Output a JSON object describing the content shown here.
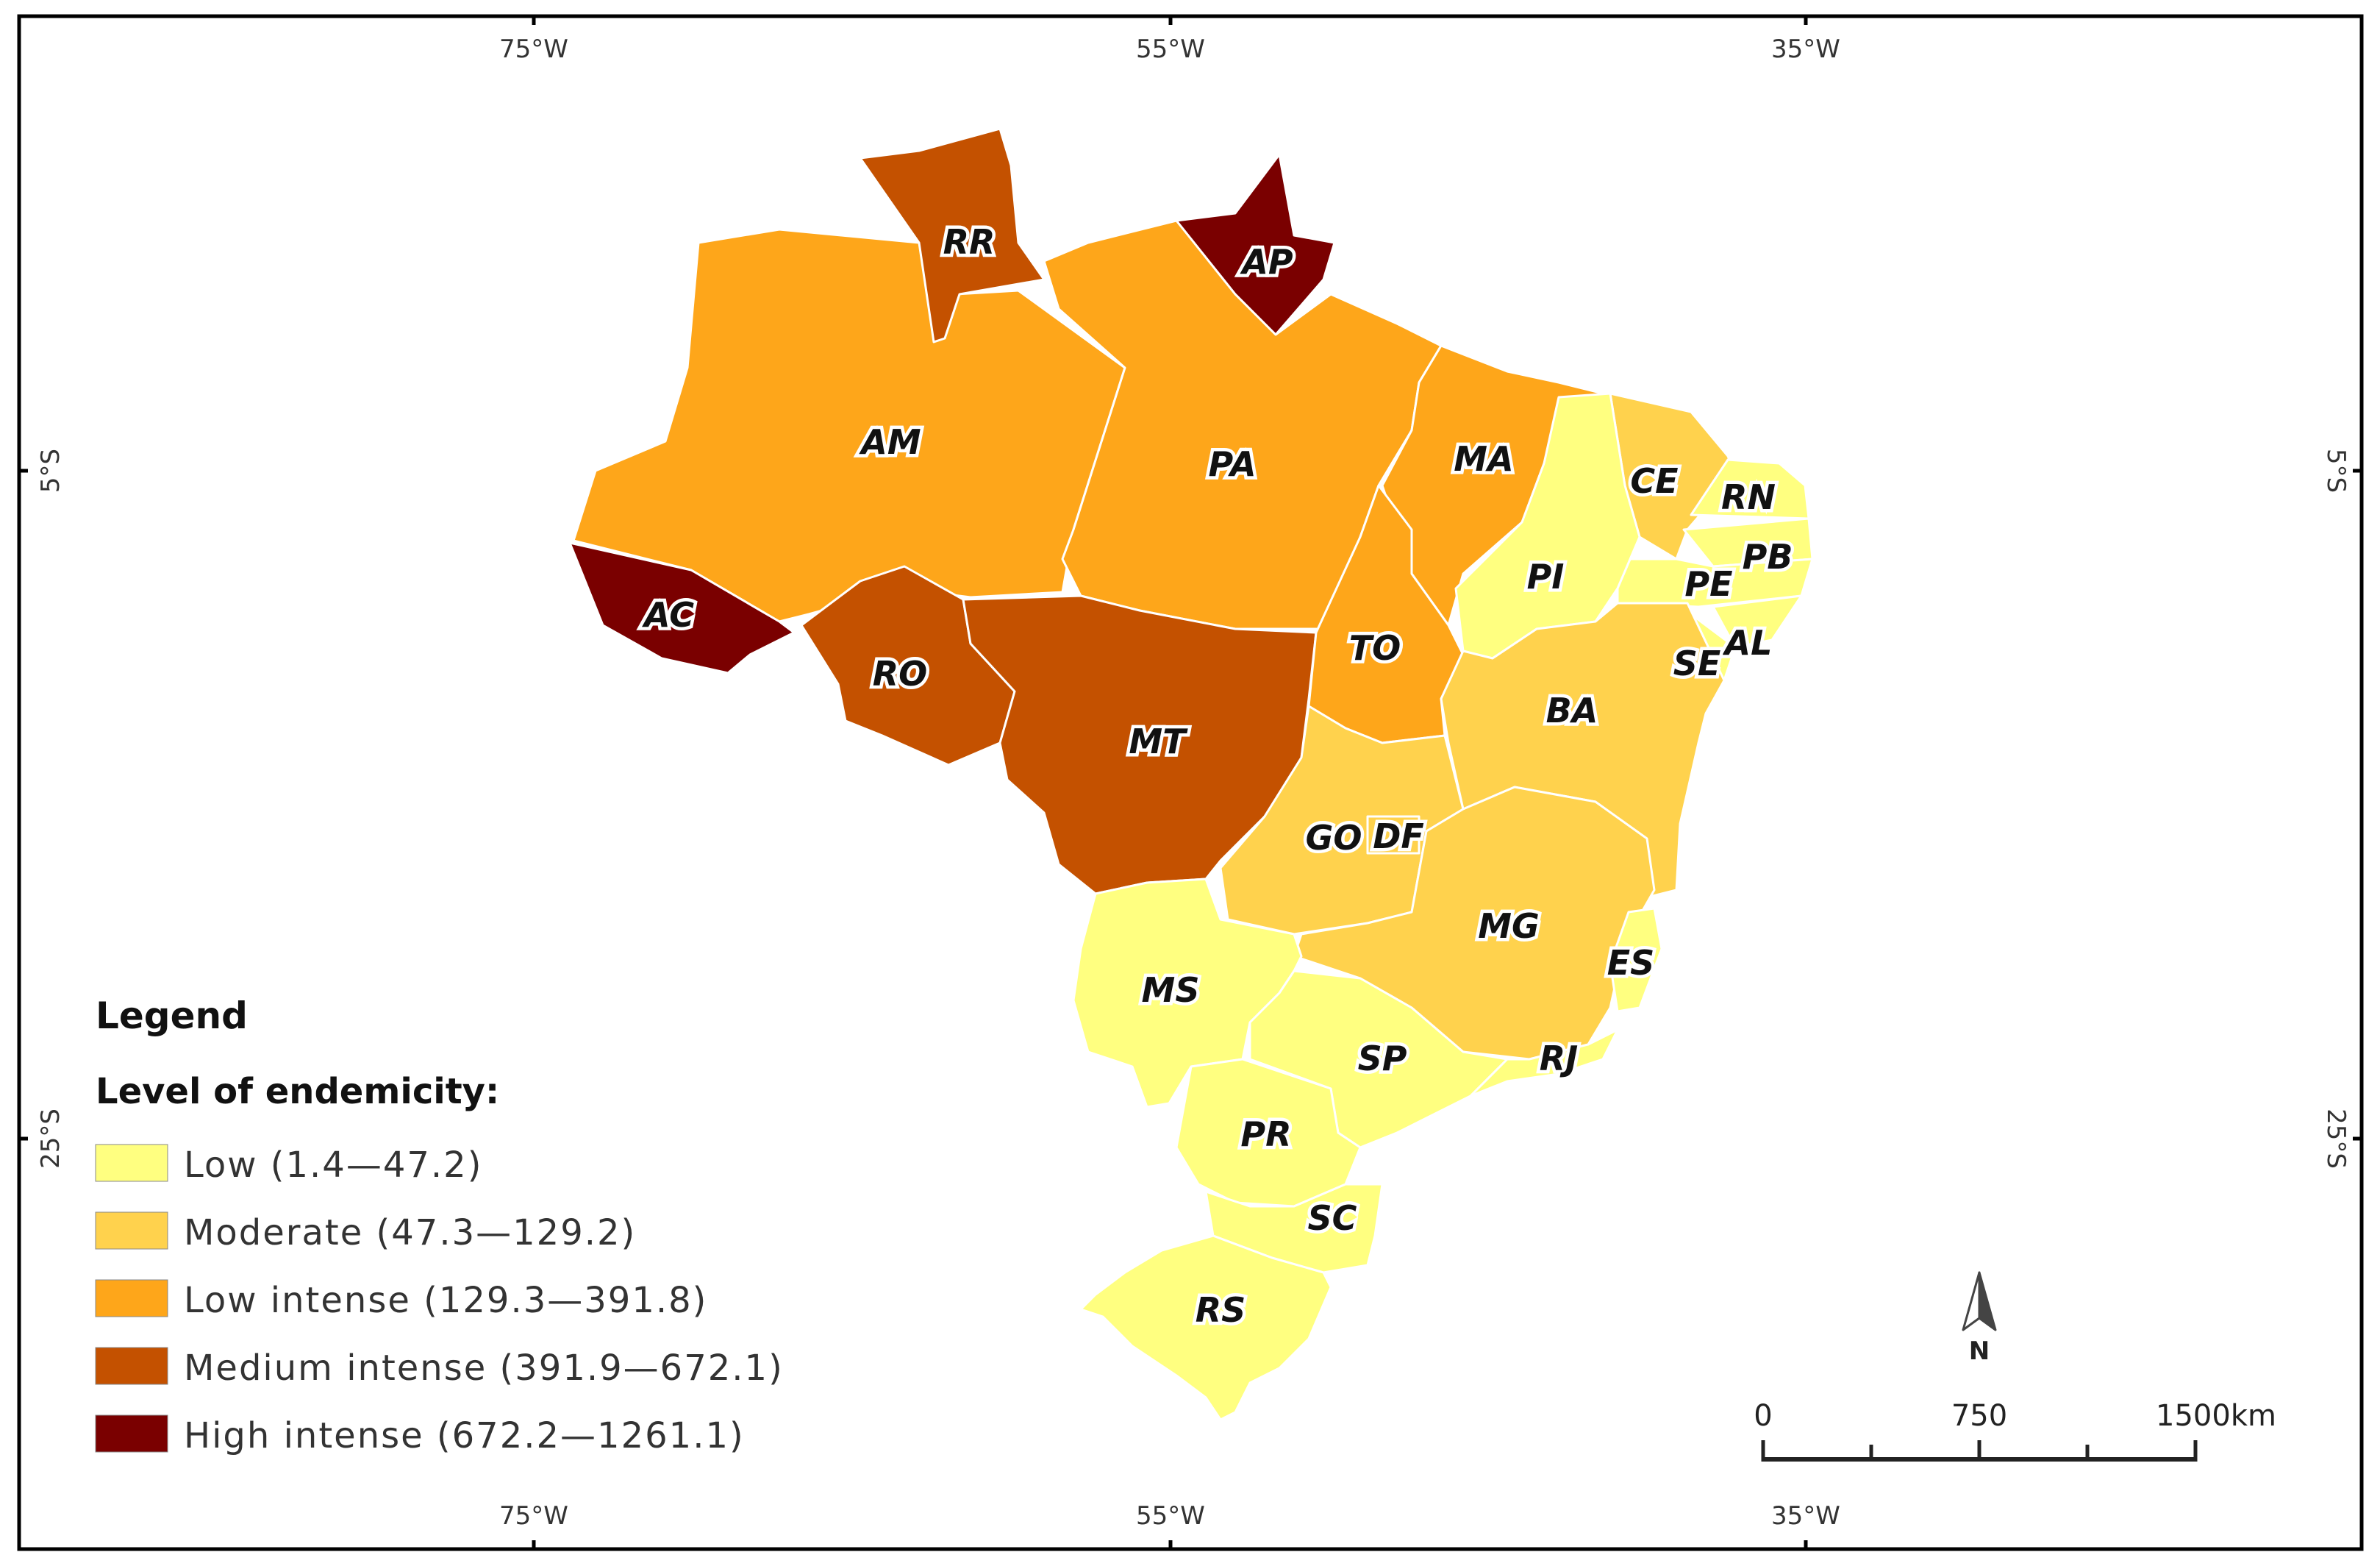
{
  "grid": {
    "top": [
      "75°W",
      "55°W",
      "35°W"
    ],
    "bottom": [
      "75°W",
      "55°W",
      "35°W"
    ],
    "left": [
      "5°S",
      "25°S"
    ],
    "right": [
      "5°S",
      "25°S"
    ]
  },
  "states": [
    {
      "abbr": "AM",
      "level": "low_intense"
    },
    {
      "abbr": "RR",
      "level": "medium_intense"
    },
    {
      "abbr": "AP",
      "level": "high_intense"
    },
    {
      "abbr": "PA",
      "level": "low_intense"
    },
    {
      "abbr": "MA",
      "level": "low_intense"
    },
    {
      "abbr": "CE",
      "level": "moderate"
    },
    {
      "abbr": "RN",
      "level": "low"
    },
    {
      "abbr": "PB",
      "level": "low"
    },
    {
      "abbr": "PE",
      "level": "low"
    },
    {
      "abbr": "PI",
      "level": "low"
    },
    {
      "abbr": "AL",
      "level": "low"
    },
    {
      "abbr": "SE",
      "level": "low"
    },
    {
      "abbr": "AC",
      "level": "high_intense"
    },
    {
      "abbr": "RO",
      "level": "medium_intense"
    },
    {
      "abbr": "MT",
      "level": "medium_intense"
    },
    {
      "abbr": "TO",
      "level": "low_intense"
    },
    {
      "abbr": "BA",
      "level": "moderate"
    },
    {
      "abbr": "GO",
      "level": "moderate"
    },
    {
      "abbr": "DF",
      "level": "moderate"
    },
    {
      "abbr": "MG",
      "level": "moderate"
    },
    {
      "abbr": "ES",
      "level": "low"
    },
    {
      "abbr": "MS",
      "level": "low"
    },
    {
      "abbr": "SP",
      "level": "low"
    },
    {
      "abbr": "RJ",
      "level": "low"
    },
    {
      "abbr": "PR",
      "level": "low"
    },
    {
      "abbr": "SC",
      "level": "low"
    },
    {
      "abbr": "RS",
      "level": "low"
    }
  ],
  "legend": {
    "title": "Legend",
    "subtitle": "Level of endemicity:",
    "classes": [
      {
        "key": "low",
        "label": "Low (1.4—47.2)",
        "color": "#ffff80"
      },
      {
        "key": "moderate",
        "label": "Moderate (47.3—129.2)",
        "color": "#ffd24d"
      },
      {
        "key": "low_intense",
        "label": "Low intense (129.3—391.8)",
        "color": "#fea61a"
      },
      {
        "key": "medium_intense",
        "label": "Medium intense (391.9—672.1)",
        "color": "#c45100"
      },
      {
        "key": "high_intense",
        "label": "High intense (672.2—1261.1)",
        "color": "#7a0000"
      }
    ]
  },
  "north_arrow": {
    "label": "N"
  },
  "scale_bar": {
    "labels": [
      "0",
      "750",
      "1500km"
    ]
  }
}
